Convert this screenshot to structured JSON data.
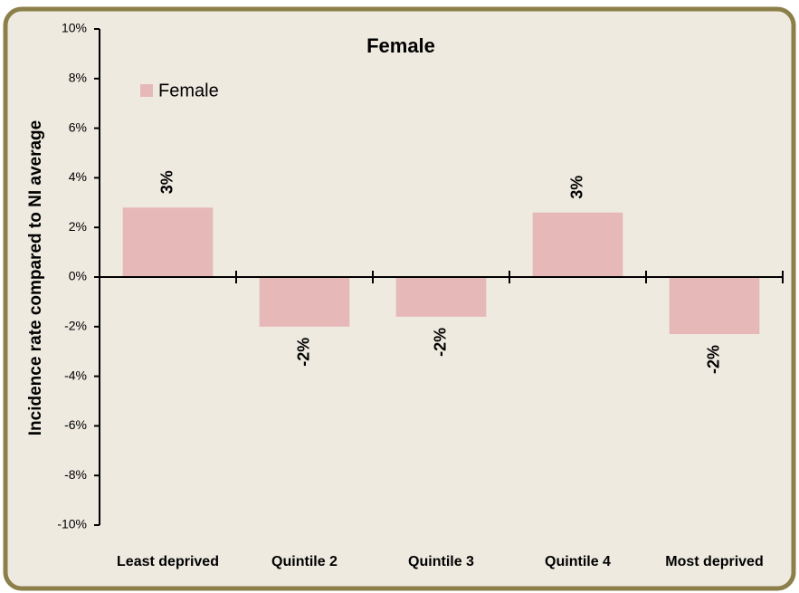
{
  "chart_data": {
    "type": "bar",
    "title": "Female",
    "y_label": "Incidence rate compared to NI average",
    "categories": [
      "Least deprived",
      "Quintile 2",
      "Quintile 3",
      "Quintile 4",
      "Most deprived"
    ],
    "series": [
      {
        "name": "Female",
        "color": "#e6b8b7",
        "values": [
          2.8,
          -2.0,
          -1.6,
          2.6,
          -2.3
        ],
        "value_labels": [
          "3%",
          "-2%",
          "-2%",
          "3%",
          "-2%"
        ]
      }
    ],
    "ylim": [
      -10,
      10
    ],
    "yticks": [
      {
        "value": -10,
        "label": "-10%"
      },
      {
        "value": -8,
        "label": "-8%"
      },
      {
        "value": -6,
        "label": "-6%"
      },
      {
        "value": -4,
        "label": "-4%"
      },
      {
        "value": -2,
        "label": "-2%"
      },
      {
        "value": 0,
        "label": "0%"
      },
      {
        "value": 2,
        "label": "2%"
      },
      {
        "value": 4,
        "label": "4%"
      },
      {
        "value": 6,
        "label": "6%"
      },
      {
        "value": 8,
        "label": "8%"
      },
      {
        "value": 10,
        "label": "10%"
      }
    ],
    "legend": "top-left"
  }
}
